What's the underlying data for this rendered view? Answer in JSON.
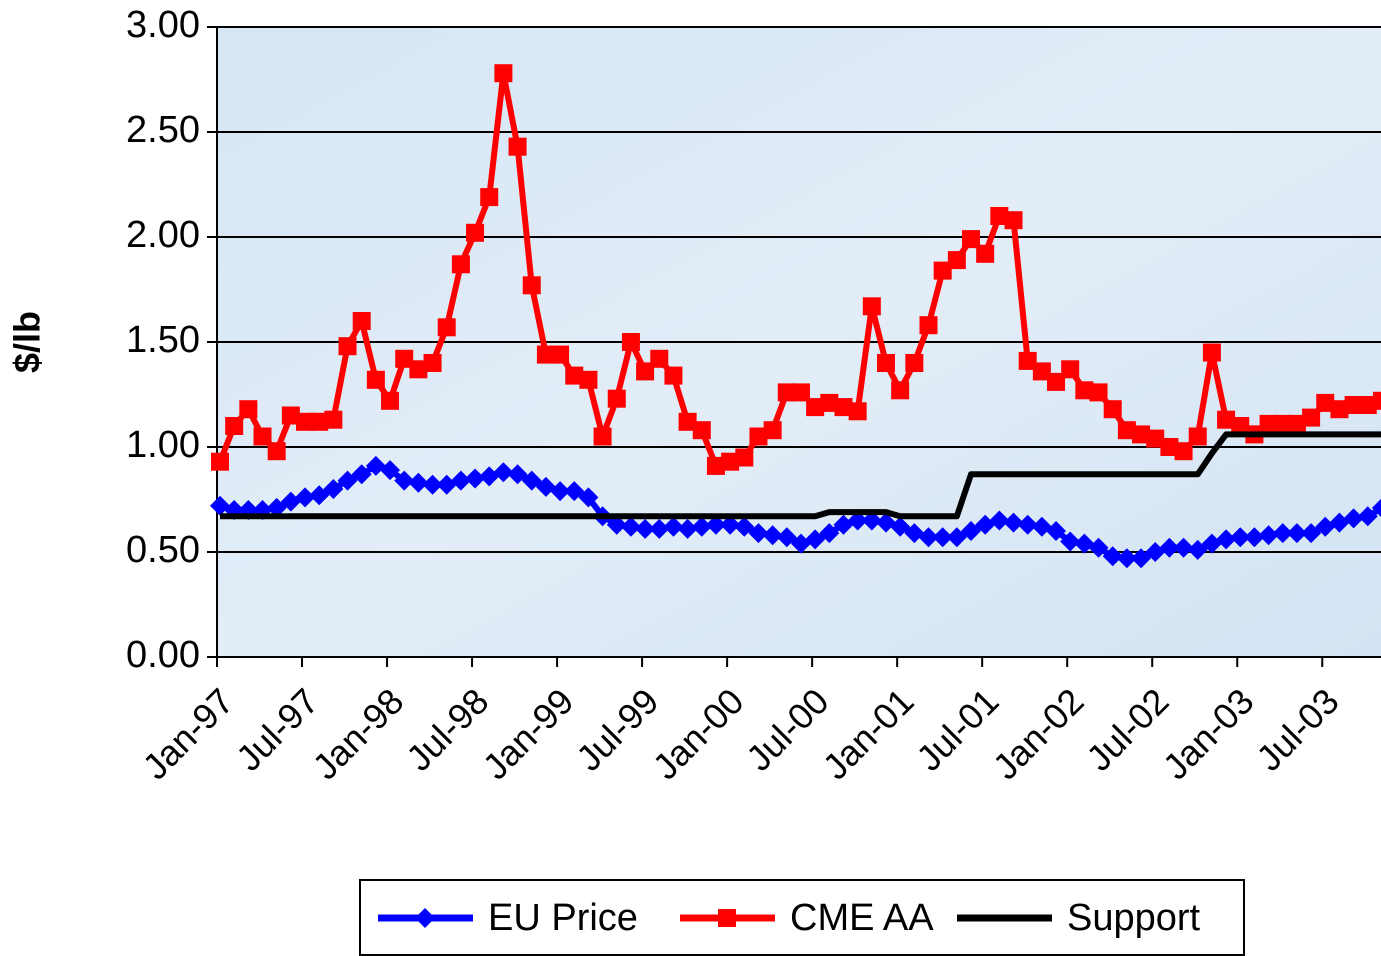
{
  "chart_data": {
    "type": "line",
    "ylabel": "$/lb",
    "categories": [
      "Jan-97",
      null,
      null,
      null,
      null,
      null,
      "Jul-97",
      null,
      null,
      null,
      null,
      null,
      "Jan-98",
      null,
      null,
      null,
      null,
      null,
      "Jul-98",
      null,
      null,
      null,
      null,
      null,
      "Jan-99",
      null,
      null,
      null,
      null,
      null,
      "Jul-99",
      null,
      null,
      null,
      null,
      null,
      "Jan-00",
      null,
      null,
      null,
      null,
      null,
      "Jul-00",
      null,
      null,
      null,
      null,
      null,
      "Jan-01",
      null,
      null,
      null,
      null,
      null,
      "Jul-01",
      null,
      null,
      null,
      null,
      null,
      "Jan-02",
      null,
      null,
      null,
      null,
      null,
      "Jul-02",
      null,
      null,
      null,
      null,
      null,
      "Jan-03",
      null,
      null,
      null,
      null,
      null,
      "Jul-03",
      null,
      null,
      null,
      null
    ],
    "series": [
      {
        "name": "EU Price",
        "color": "#0000ff",
        "marker": "diamond",
        "values": [
          0.72,
          0.7,
          0.7,
          0.7,
          0.71,
          0.74,
          0.76,
          0.77,
          0.8,
          0.84,
          0.87,
          0.91,
          0.89,
          0.84,
          0.83,
          0.82,
          0.82,
          0.84,
          0.85,
          0.86,
          0.88,
          0.87,
          0.84,
          0.81,
          0.79,
          0.79,
          0.76,
          0.67,
          0.63,
          0.62,
          0.61,
          0.61,
          0.62,
          0.61,
          0.62,
          0.63,
          0.63,
          0.62,
          0.59,
          0.58,
          0.57,
          0.54,
          0.56,
          0.59,
          0.63,
          0.65,
          0.65,
          0.64,
          0.62,
          0.59,
          0.57,
          0.57,
          0.57,
          0.6,
          0.63,
          0.65,
          0.64,
          0.63,
          0.62,
          0.6,
          0.55,
          0.54,
          0.52,
          0.48,
          0.47,
          0.47,
          0.5,
          0.52,
          0.52,
          0.51,
          0.54,
          0.56,
          0.57,
          0.57,
          0.58,
          0.59,
          0.59,
          0.59,
          0.62,
          0.64,
          0.66,
          0.67,
          0.71
        ]
      },
      {
        "name": "CME AA",
        "color": "#ff0000",
        "marker": "square",
        "values": [
          0.93,
          1.1,
          1.18,
          1.05,
          0.98,
          1.15,
          1.12,
          1.12,
          1.13,
          1.48,
          1.6,
          1.32,
          1.22,
          1.42,
          1.37,
          1.4,
          1.57,
          1.87,
          2.02,
          2.19,
          2.78,
          2.43,
          1.77,
          1.44,
          1.44,
          1.34,
          1.32,
          1.05,
          1.23,
          1.5,
          1.36,
          1.42,
          1.34,
          1.12,
          1.08,
          0.91,
          0.93,
          0.95,
          1.05,
          1.08,
          1.26,
          1.26,
          1.19,
          1.21,
          1.19,
          1.17,
          1.67,
          1.4,
          1.27,
          1.4,
          1.58,
          1.84,
          1.89,
          1.99,
          1.92,
          2.1,
          2.08,
          1.41,
          1.36,
          1.31,
          1.37,
          1.27,
          1.26,
          1.18,
          1.08,
          1.06,
          1.04,
          1.0,
          0.98,
          1.05,
          1.45,
          1.13,
          1.1,
          1.06,
          1.11,
          1.11,
          1.11,
          1.14,
          1.21,
          1.18,
          1.2,
          1.2,
          1.22
        ]
      },
      {
        "name": "Support",
        "color": "#000000",
        "marker": "none",
        "values": [
          0.67,
          0.67,
          0.67,
          0.67,
          0.67,
          0.67,
          0.67,
          0.67,
          0.67,
          0.67,
          0.67,
          0.67,
          0.67,
          0.67,
          0.67,
          0.67,
          0.67,
          0.67,
          0.67,
          0.67,
          0.67,
          0.67,
          0.67,
          0.67,
          0.67,
          0.67,
          0.67,
          0.67,
          0.67,
          0.67,
          0.67,
          0.67,
          0.67,
          0.67,
          0.67,
          0.67,
          0.67,
          0.67,
          0.67,
          0.67,
          0.67,
          0.67,
          0.67,
          0.69,
          0.69,
          0.69,
          0.69,
          0.69,
          0.67,
          0.67,
          0.67,
          0.67,
          0.67,
          0.87,
          0.87,
          0.87,
          0.87,
          0.87,
          0.87,
          0.87,
          0.87,
          0.87,
          0.87,
          0.87,
          0.87,
          0.87,
          0.87,
          0.87,
          0.87,
          0.87,
          0.97,
          1.06,
          1.06,
          1.06,
          1.06,
          1.06,
          1.06,
          1.06,
          1.06,
          1.06,
          1.06,
          1.06,
          1.06
        ]
      }
    ],
    "ylim": [
      0,
      3
    ],
    "yticks": [
      {
        "value": 0,
        "label": "0.00"
      },
      {
        "value": 0.5,
        "label": "0.50"
      },
      {
        "value": 1,
        "label": "1.00"
      },
      {
        "value": 1.5,
        "label": "1.50"
      },
      {
        "value": 2,
        "label": "2.00"
      },
      {
        "value": 2.5,
        "label": "2.50"
      },
      {
        "value": 3,
        "label": "3.00"
      }
    ],
    "grid": true,
    "legend": "bottom"
  }
}
